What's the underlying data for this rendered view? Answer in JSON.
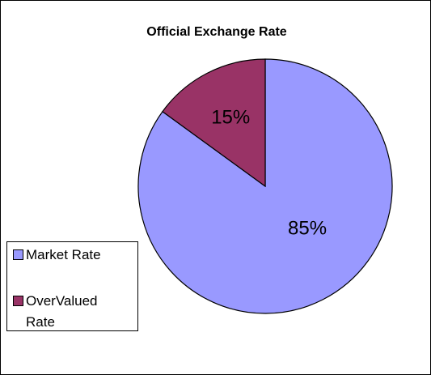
{
  "chart_data": {
    "type": "pie",
    "title": "Official Exchange Rate",
    "categories": [
      "Market Rate",
      "OverValued Rate"
    ],
    "values": [
      85,
      15
    ],
    "value_labels": [
      "85%",
      "15%"
    ],
    "colors": [
      "#9999ff",
      "#993366"
    ],
    "legend": "left"
  }
}
